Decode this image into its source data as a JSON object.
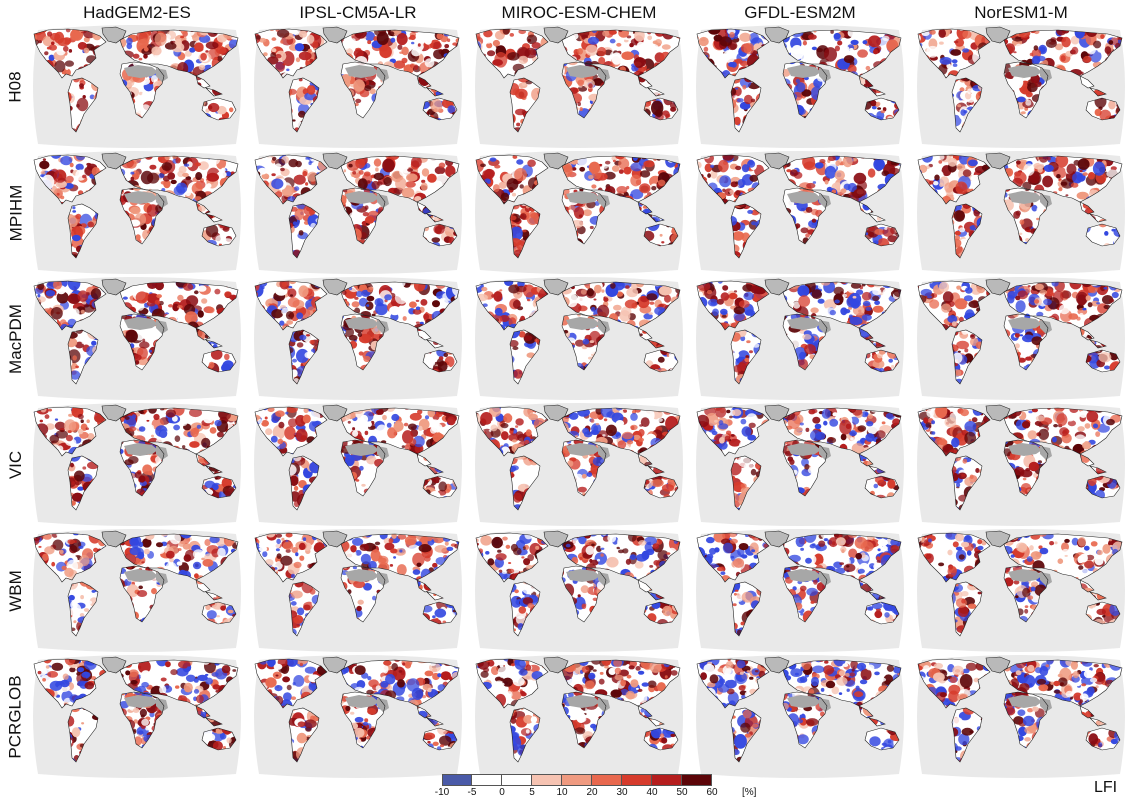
{
  "columns": [
    "HadGEM2-ES",
    "IPSL-CM5A-LR",
    "MIROC-ESM-CHEM",
    "GFDL-ESM2M",
    "NorESM1-M"
  ],
  "rows": [
    "H08",
    "MPIHM",
    "MacPDM",
    "VIC",
    "WBM",
    "PCRGLOB"
  ],
  "legend": {
    "ticks": [
      "-10",
      "-5",
      "0",
      "5",
      "10",
      "20",
      "30",
      "40",
      "50",
      "60"
    ],
    "unit": "[%]",
    "colors": [
      "#4a5aa8",
      "#ffffff",
      "#ffffff",
      "#f6c3b2",
      "#ef9a80",
      "#e8684e",
      "#d63b2c",
      "#b51d1d",
      "#8a0c12",
      "#5c0508"
    ]
  },
  "variable": "LFI",
  "map_colors": {
    "ocean": "#e9e9e9",
    "land_base": "#ffffff",
    "desert": "#a7a7a7",
    "greenland": "#b9b9b9",
    "decrease": "#3347e0",
    "coast": "#222222"
  }
}
